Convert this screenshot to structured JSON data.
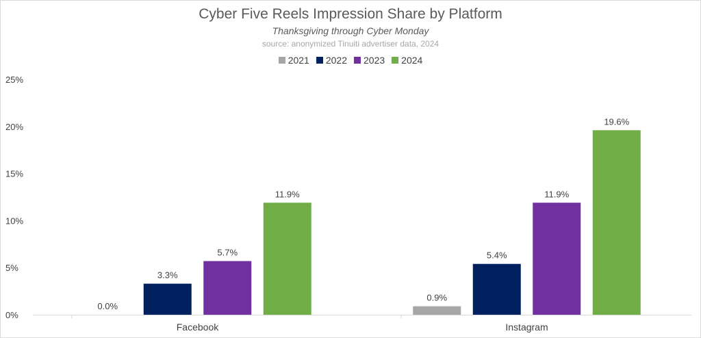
{
  "chart_data": {
    "type": "bar",
    "title": "Cyber Five Reels Impression Share by Platform",
    "subtitle": "Thanksgiving through Cyber Monday",
    "source": "source: anonymized Tinuiti advertiser data, 2024",
    "categories": [
      "Facebook",
      "Instagram"
    ],
    "series": [
      {
        "name": "2021",
        "color": "#a6a6a6",
        "values": [
          0.0,
          0.9
        ],
        "labels": [
          "0.0%",
          "0.9%"
        ]
      },
      {
        "name": "2022",
        "color": "#002060",
        "values": [
          3.3,
          5.4
        ],
        "labels": [
          "3.3%",
          "5.4%"
        ]
      },
      {
        "name": "2023",
        "color": "#7030a0",
        "values": [
          5.7,
          11.9
        ],
        "labels": [
          "5.7%",
          "11.9%"
        ]
      },
      {
        "name": "2024",
        "color": "#70ad47",
        "values": [
          11.9,
          19.6
        ],
        "labels": [
          "11.9%",
          "19.6%"
        ]
      }
    ],
    "ylim": [
      0,
      25
    ],
    "yticks": [
      0,
      5,
      10,
      15,
      20,
      25
    ],
    "ytick_labels": [
      "0%",
      "5%",
      "10%",
      "15%",
      "20%",
      "25%"
    ],
    "xlabel": "",
    "ylabel": "",
    "grid": false,
    "legend_position": "top-center"
  }
}
